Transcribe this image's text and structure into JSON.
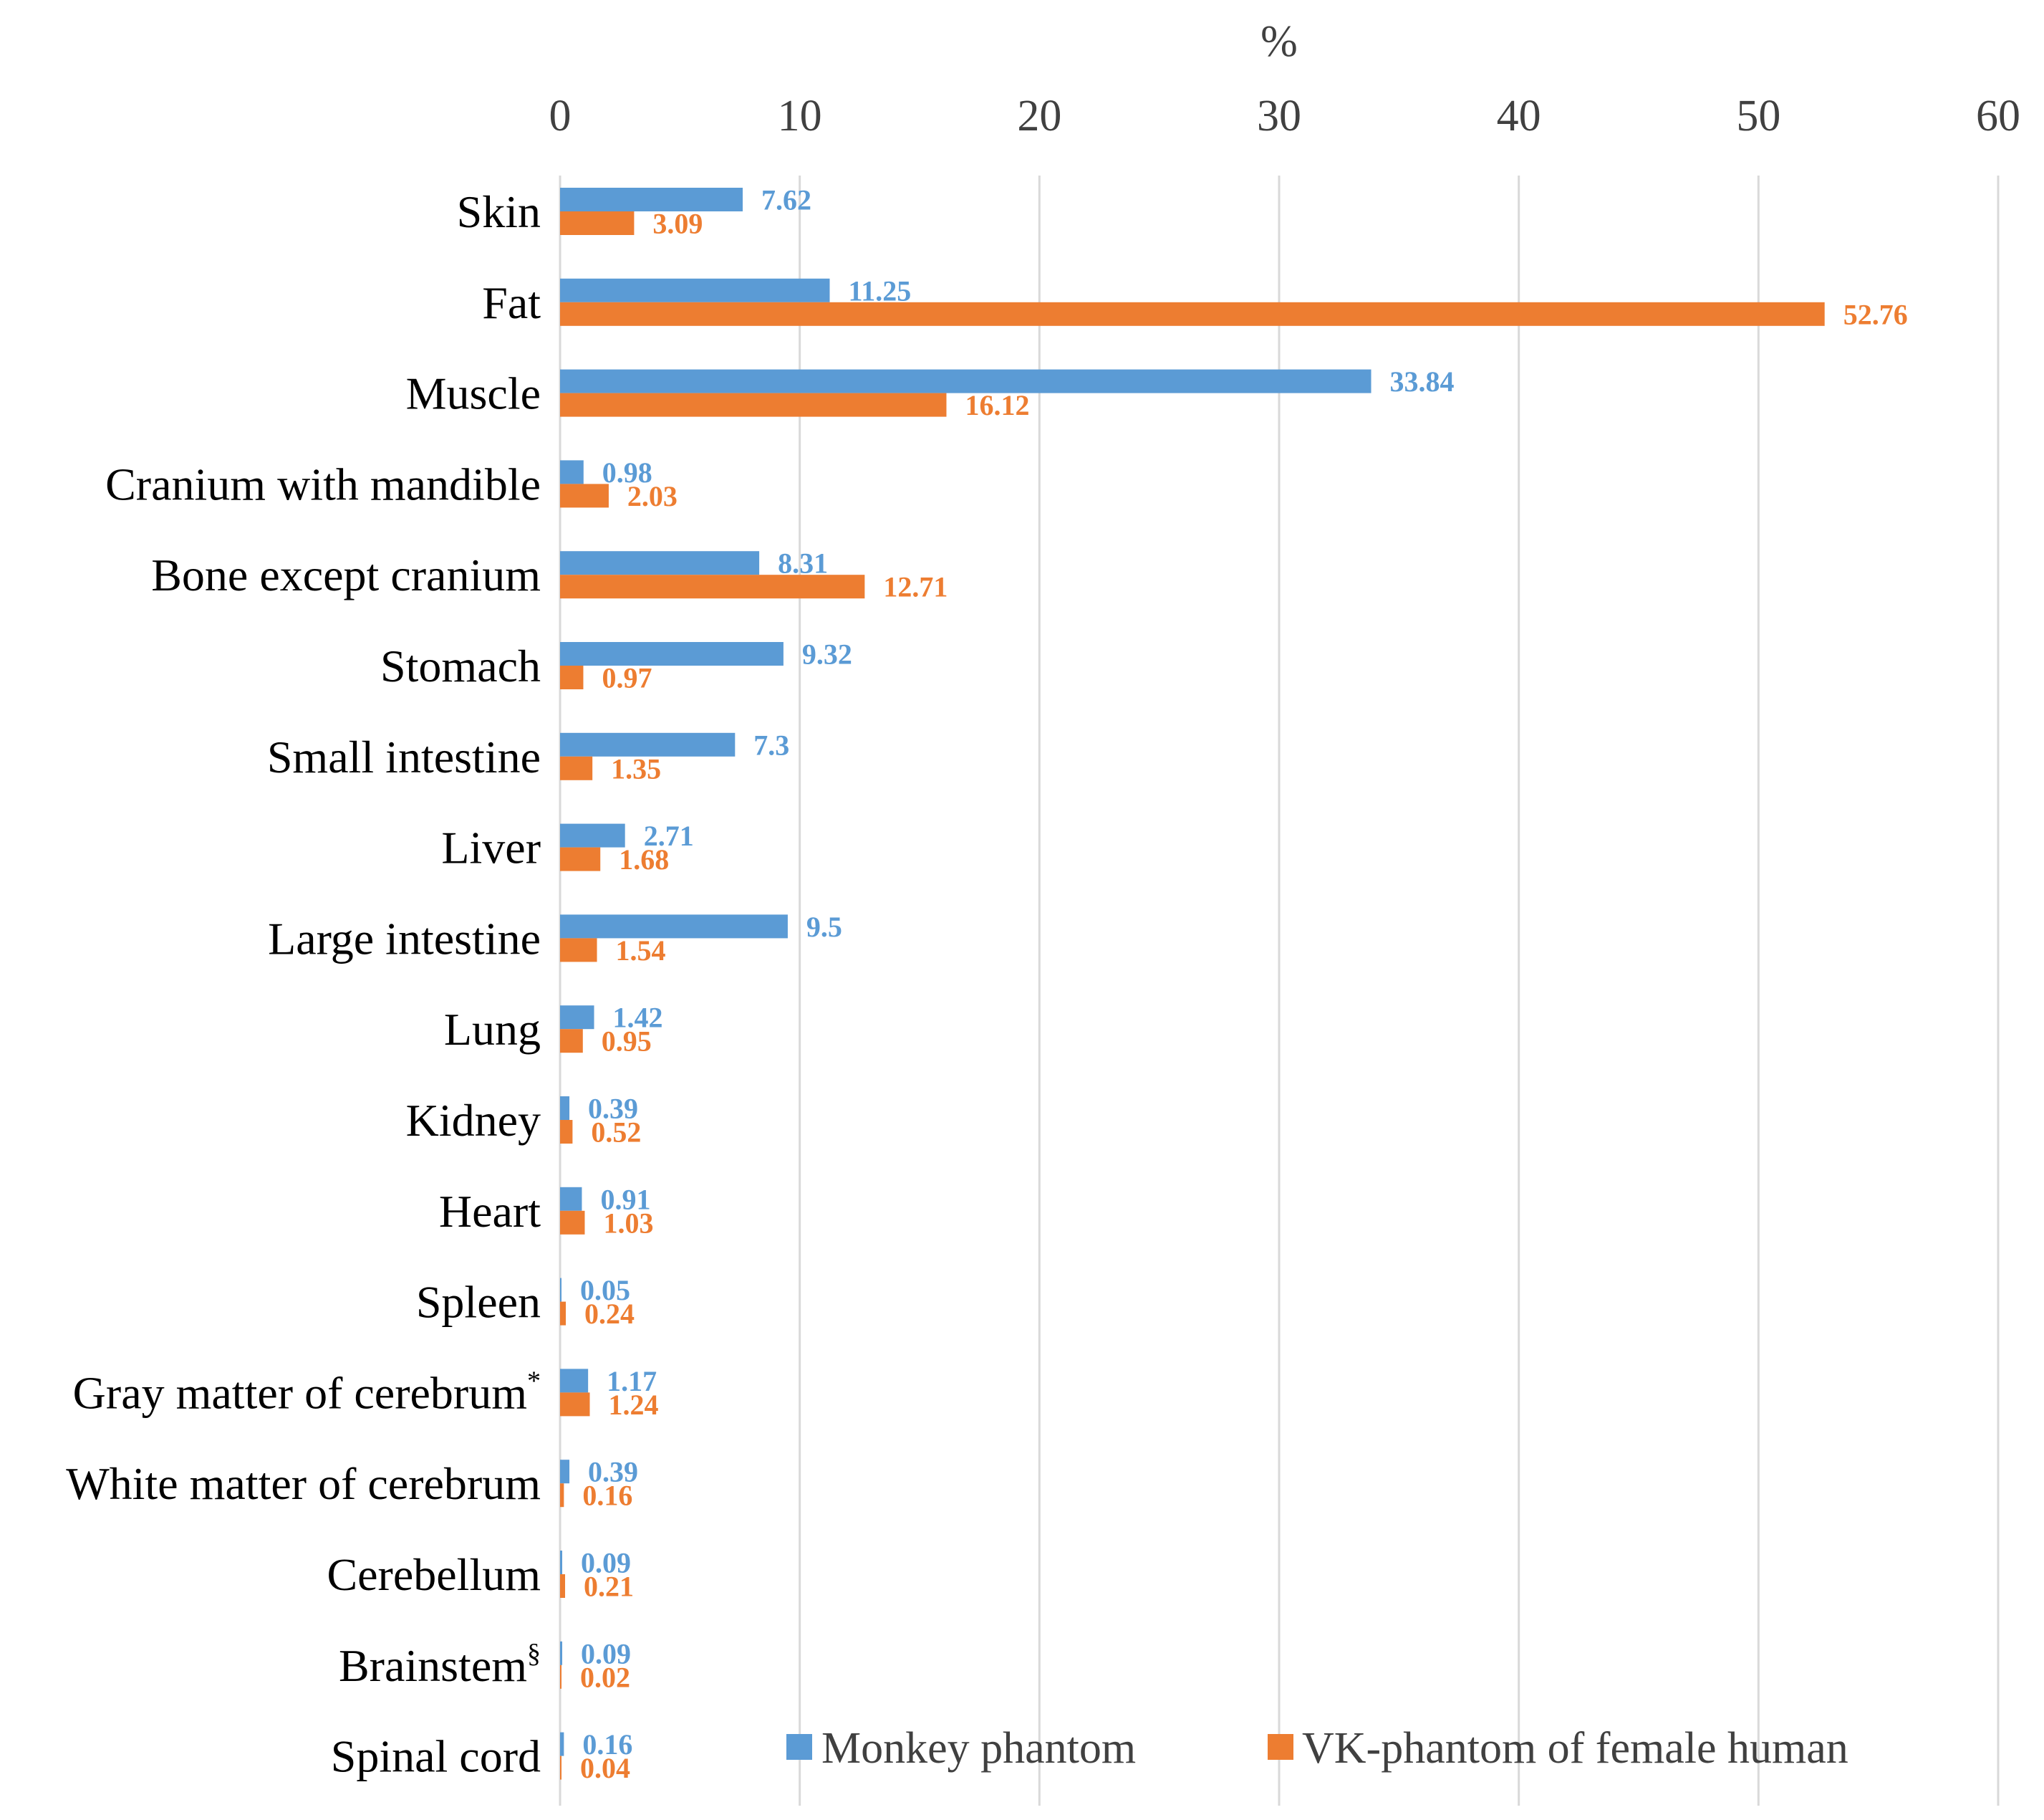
{
  "chart_data": {
    "type": "bar",
    "orientation": "horizontal",
    "xlabel": "%",
    "xlim": [
      0,
      60
    ],
    "xticks": [
      0,
      10,
      20,
      30,
      40,
      50,
      60
    ],
    "x_axis_position": "top",
    "grid": true,
    "categories": [
      "Skin",
      "Fat",
      "Muscle",
      "Cranium with mandible",
      "Bone except cranium",
      "Stomach",
      "Small intestine",
      "Liver",
      "Large intestine",
      "Lung",
      "Kidney",
      "Heart",
      "Spleen",
      "Gray matter of cerebrum",
      "White matter of cerebrum",
      "Cerebellum",
      "Brainstem",
      "Spinal cord"
    ],
    "category_superscripts": {
      "Gray matter of cerebrum": "*",
      "Brainstem": "§"
    },
    "series": [
      {
        "name": "Monkey phantom",
        "color": "#5B9BD5",
        "values": [
          7.62,
          11.25,
          33.84,
          0.98,
          8.31,
          9.32,
          7.3,
          2.71,
          9.5,
          1.42,
          0.39,
          0.91,
          0.05,
          1.17,
          0.39,
          0.09,
          0.09,
          0.16
        ],
        "labels": [
          "7.62",
          "11.25",
          "33.84",
          "0.98",
          "8.31",
          "9.32",
          "7.3",
          "2.71",
          "9.5",
          "1.42",
          "0.39",
          "0.91",
          "0.05",
          "1.17",
          "0.39",
          "0.09",
          "0.09",
          "0.16"
        ]
      },
      {
        "name": "VK-phantom of female human",
        "color": "#ED7D31",
        "values": [
          3.09,
          52.76,
          16.12,
          2.03,
          12.71,
          0.97,
          1.35,
          1.68,
          1.54,
          0.95,
          0.52,
          1.03,
          0.24,
          1.24,
          0.16,
          0.21,
          0.02,
          0.04
        ],
        "labels": [
          "3.09",
          "52.76",
          "16.12",
          "2.03",
          "12.71",
          "0.97",
          "1.35",
          "1.68",
          "1.54",
          "0.95",
          "0.52",
          "1.03",
          "0.24",
          "1.24",
          "0.16",
          "0.21",
          "0.02",
          "0.04"
        ]
      }
    ],
    "legend": {
      "placement": "bottom-right",
      "entries": [
        "Monkey phantom",
        "VK-phantom of female human"
      ]
    }
  }
}
